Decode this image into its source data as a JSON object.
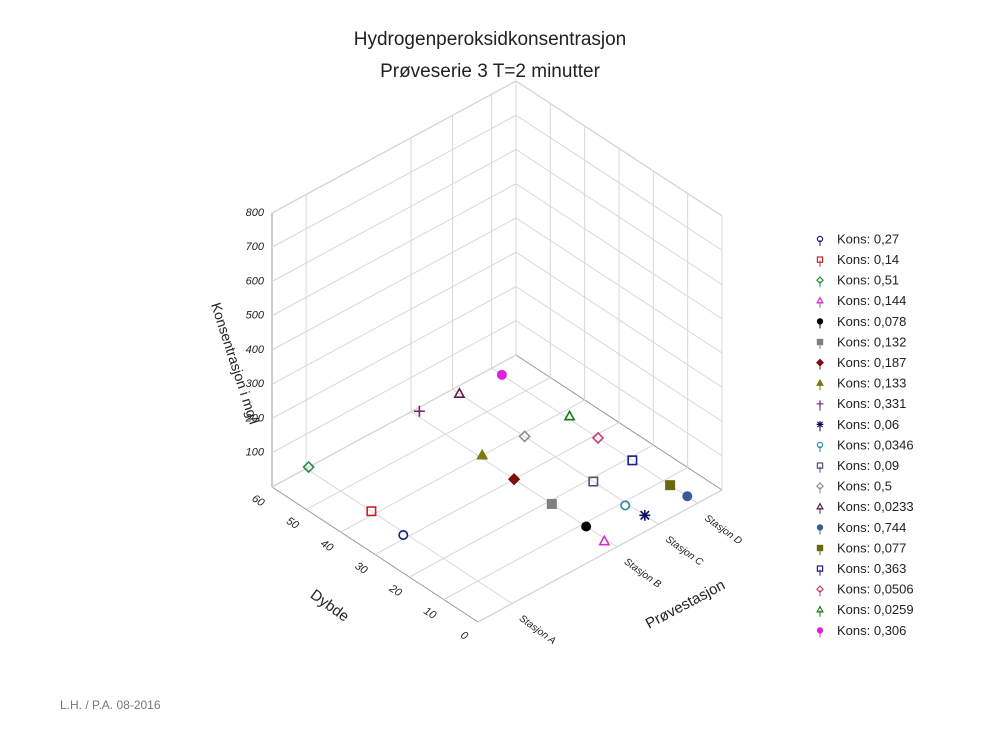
{
  "chart_data": {
    "type": "scatter3d",
    "title": "Hydrogenperoksidkonsentrasjon",
    "subtitle": "Prøveserie 3 T=2 minutter",
    "xlabel": "Prøvestasjon",
    "ylabel": "Dybde",
    "zlabel": "Konsentrasjon i mg/l",
    "xlim": [
      0,
      1
    ],
    "xticks": [
      {
        "value": 0.14,
        "label": "Stasjon A"
      },
      {
        "value": 0.57,
        "label": "Stasjon B"
      },
      {
        "value": 0.74,
        "label": "Stasjon C"
      },
      {
        "value": 0.9,
        "label": "Stasjon D"
      }
    ],
    "ylim": [
      0,
      60
    ],
    "yticks": [
      0,
      10,
      20,
      30,
      40,
      50,
      60
    ],
    "zlim": [
      0,
      800
    ],
    "zticks": [
      100,
      200,
      300,
      400,
      500,
      600,
      700,
      800
    ],
    "grid": true,
    "legend": "right",
    "footer": "L.H. / P.A. 08-2016",
    "series": [
      {
        "name": "Kons: 0,27",
        "color": "#1a1a8c",
        "marker": "circle",
        "filled": false,
        "x": 0.13,
        "depth": 31,
        "value": 0.27
      },
      {
        "name": "Kons: 0,14",
        "color": "#d02020",
        "marker": "square",
        "filled": false,
        "x": 0.14,
        "depth": 41,
        "value": 0.14
      },
      {
        "name": "Kons: 0,51",
        "color": "#2a8a4a",
        "marker": "diamond",
        "filled": false,
        "x": 0.15,
        "depth": 60,
        "value": 0.51
      },
      {
        "name": "Kons: 0,144",
        "color": "#d030d0",
        "marker": "triangle",
        "filled": false,
        "x": 0.56,
        "depth": 3,
        "value": 0.144
      },
      {
        "name": "Kons: 0,078",
        "color": "#000000",
        "marker": "circle",
        "filled": true,
        "x": 0.57,
        "depth": 9,
        "value": 0.078
      },
      {
        "name": "Kons: 0,132",
        "color": "#808080",
        "marker": "square",
        "filled": true,
        "x": 0.57,
        "depth": 19,
        "value": 0.132
      },
      {
        "name": "Kons: 0,187",
        "color": "#7a1010",
        "marker": "diamond",
        "filled": true,
        "x": 0.57,
        "depth": 30,
        "value": 0.187
      },
      {
        "name": "Kons: 0,133",
        "color": "#7a7a10",
        "marker": "triangle",
        "filled": true,
        "x": 0.58,
        "depth": 40,
        "value": 0.133
      },
      {
        "name": "Kons: 0,331",
        "color": "#7a1a7a",
        "marker": "plus",
        "filled": false,
        "x": 0.59,
        "depth": 59,
        "value": 0.331
      },
      {
        "name": "Kons: 0,06",
        "color": "#101060",
        "marker": "asterisk",
        "filled": false,
        "x": 0.74,
        "depth": 4,
        "value": 0.06
      },
      {
        "name": "Kons: 0,0346",
        "color": "#2a8aa0",
        "marker": "circle",
        "filled": false,
        "x": 0.73,
        "depth": 9,
        "value": 0.0346
      },
      {
        "name": "Kons: 0,09",
        "color": "#5a4a7a",
        "marker": "square",
        "filled": false,
        "x": 0.74,
        "depth": 19,
        "value": 0.09
      },
      {
        "name": "Kons: 0,5",
        "color": "#909090",
        "marker": "diamond",
        "filled": false,
        "x": 0.74,
        "depth": 39,
        "value": 0.5
      },
      {
        "name": "Kons: 0,0233",
        "color": "#5a1a4a",
        "marker": "triangle",
        "filled": false,
        "x": 0.74,
        "depth": 58,
        "value": 0.0233
      },
      {
        "name": "Kons: 0,744",
        "color": "#3a5a9a",
        "marker": "circle",
        "filled": true,
        "x": 0.9,
        "depth": 3,
        "value": 0.744
      },
      {
        "name": "Kons: 0,077",
        "color": "#6a6a10",
        "marker": "square",
        "filled": true,
        "x": 0.9,
        "depth": 8,
        "value": 0.077
      },
      {
        "name": "Kons: 0,363",
        "color": "#1a1a8c",
        "marker": "square",
        "filled": false,
        "x": 0.9,
        "depth": 19,
        "value": 0.363
      },
      {
        "name": "Kons: 0,0506",
        "color": "#c04070",
        "marker": "diamond",
        "filled": false,
        "x": 0.9,
        "depth": 29,
        "value": 0.0506
      },
      {
        "name": "Kons: 0,0259",
        "color": "#1a7a1a",
        "marker": "triangle",
        "filled": false,
        "x": 0.91,
        "depth": 38,
        "value": 0.0259
      },
      {
        "name": "Kons: 0,306",
        "color": "#e020e0",
        "marker": "circle",
        "filled": true,
        "x": 0.9,
        "depth": 57,
        "value": 0.306
      }
    ]
  }
}
